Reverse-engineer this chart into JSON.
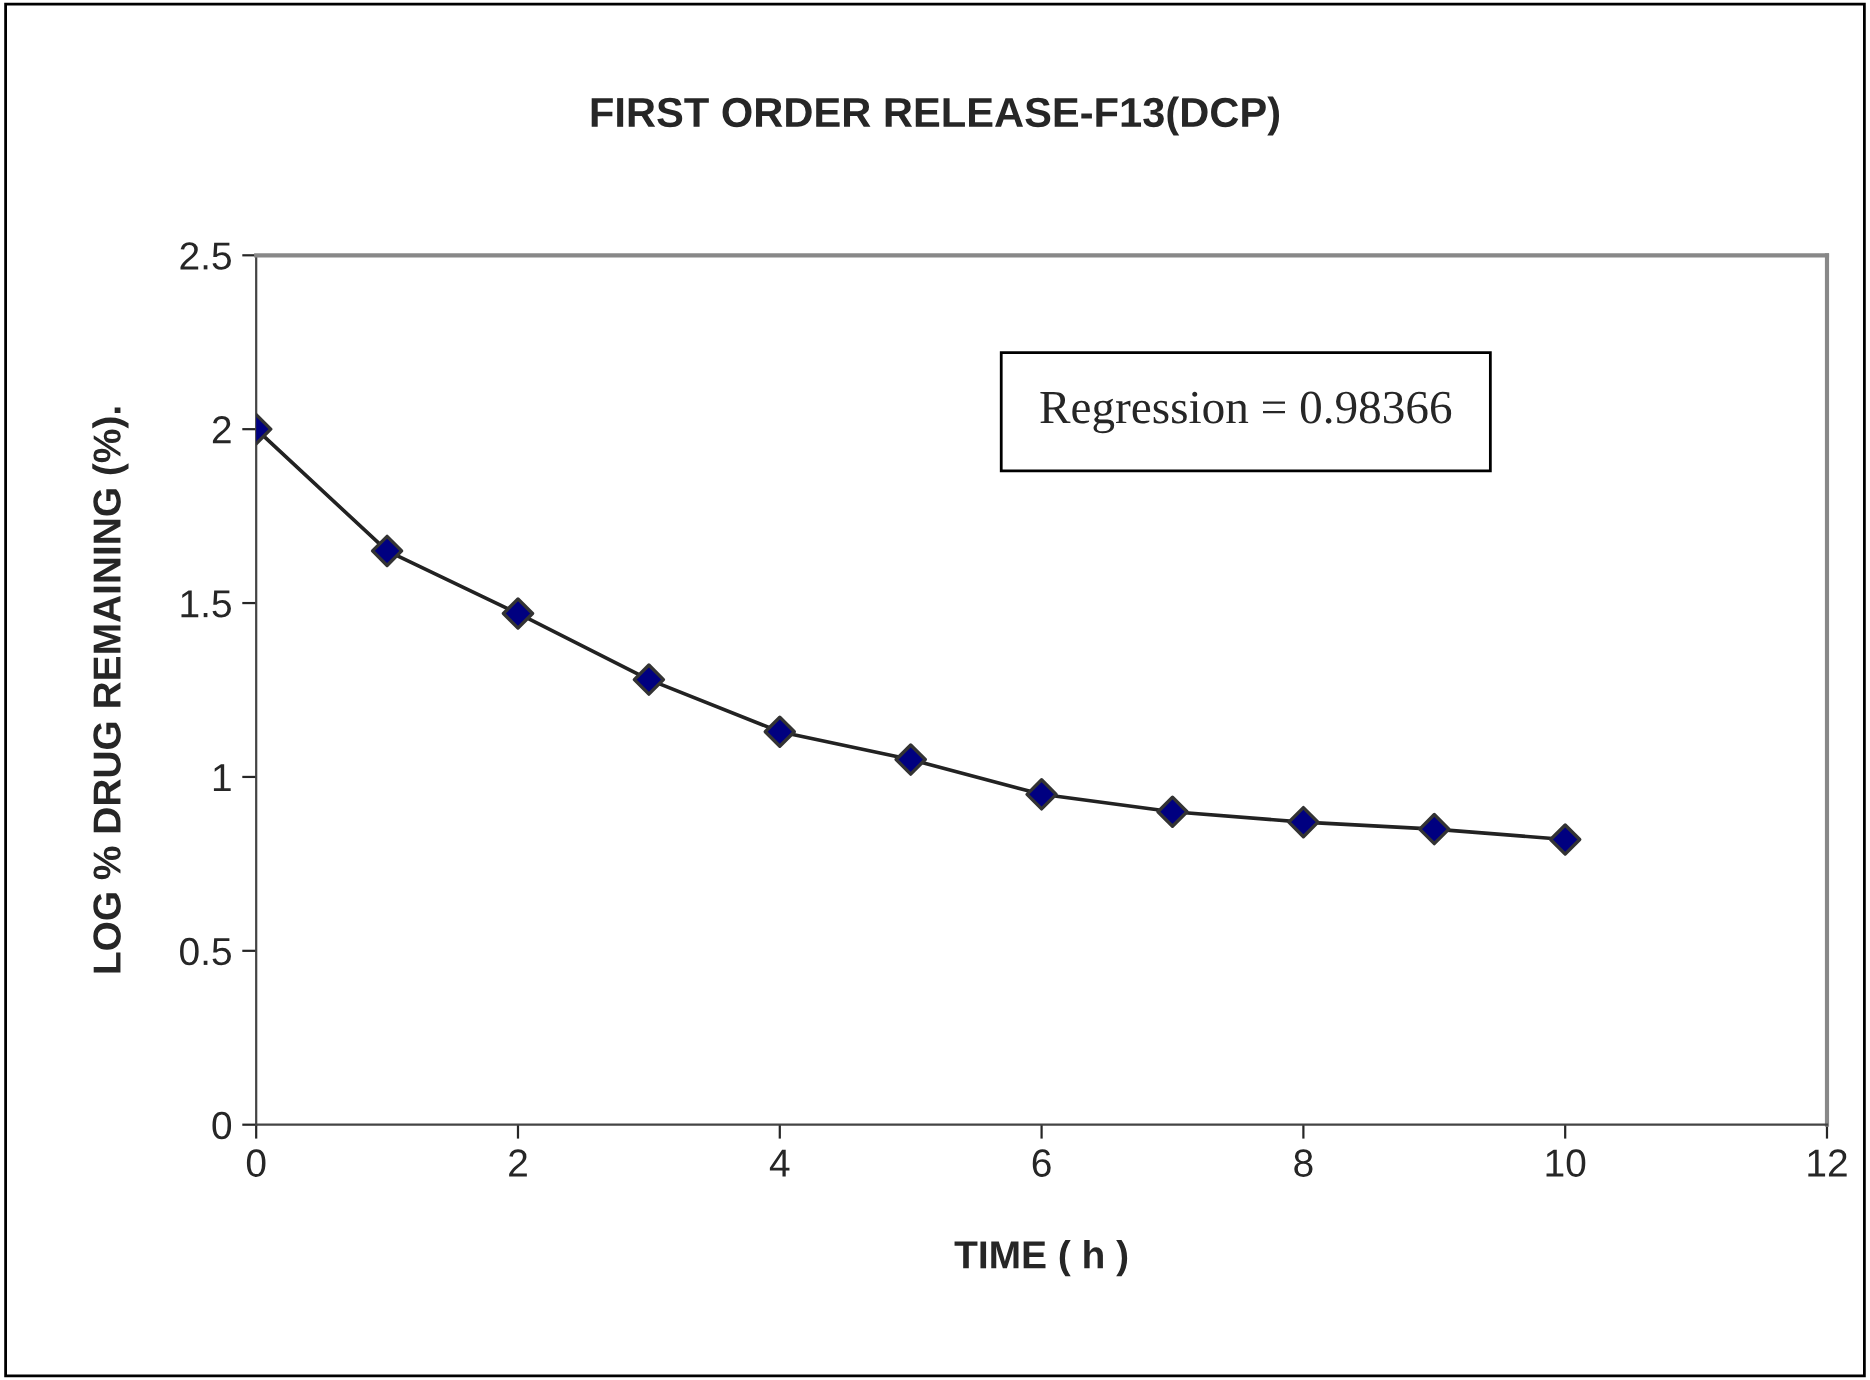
{
  "chart_data": {
    "type": "line",
    "title": "FIRST ORDER RELEASE-F13(DCP)",
    "xlabel": "TIME ( h )",
    "ylabel": "LOG % DRUG REMAINING (%).",
    "x": [
      0,
      1,
      2,
      3,
      4,
      5,
      6,
      7,
      8,
      9,
      10
    ],
    "series": [
      {
        "color": "#000080",
        "values": [
          2.0,
          1.65,
          1.47,
          1.28,
          1.13,
          1.05,
          0.95,
          0.9,
          0.87,
          0.85,
          0.82
        ]
      }
    ],
    "xlim": [
      0,
      12
    ],
    "xticks": [
      0,
      2,
      4,
      6,
      8,
      10,
      12
    ],
    "ylim": [
      0,
      2.5
    ],
    "yticks": [
      0,
      0.5,
      1,
      1.5,
      2,
      2.5
    ],
    "annotations": [
      "Regression = 0.98366"
    ],
    "marker": "diamond",
    "line_style": "solid",
    "grid": false,
    "legend": false
  }
}
